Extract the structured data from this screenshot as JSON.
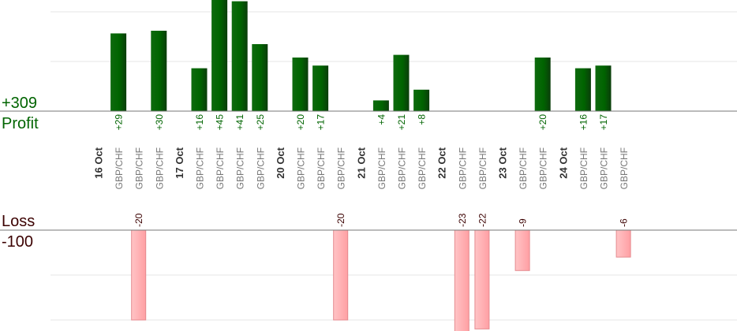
{
  "chart_data": {
    "type": "bar",
    "title": "",
    "profit_total": "+309",
    "profit_label": "Profit",
    "loss_label": "Loss",
    "loss_total": "-100",
    "columns": [
      {
        "label": "16 Oct",
        "kind": "date"
      },
      {
        "label": "GBP/CHF",
        "kind": "trade",
        "value": 29,
        "text": "+29"
      },
      {
        "label": "GBP/CHF",
        "kind": "trade",
        "value": -20,
        "text": "-20"
      },
      {
        "label": "GBP/CHF",
        "kind": "trade",
        "value": 30,
        "text": "+30"
      },
      {
        "label": "17 Oct",
        "kind": "date"
      },
      {
        "label": "GBP/CHF",
        "kind": "trade",
        "value": 16,
        "text": "+16"
      },
      {
        "label": "GBP/CHF",
        "kind": "trade",
        "value": 45,
        "text": "+45"
      },
      {
        "label": "GBP/CHF",
        "kind": "trade",
        "value": 41,
        "text": "+41"
      },
      {
        "label": "GBP/CHF",
        "kind": "trade",
        "value": 25,
        "text": "+25"
      },
      {
        "label": "20 Oct",
        "kind": "date"
      },
      {
        "label": "GBP/CHF",
        "kind": "trade",
        "value": 20,
        "text": "+20"
      },
      {
        "label": "GBP/CHF",
        "kind": "trade",
        "value": 17,
        "text": "+17"
      },
      {
        "label": "GBP/CHF",
        "kind": "trade",
        "value": -20,
        "text": "-20"
      },
      {
        "label": "21 Oct",
        "kind": "date"
      },
      {
        "label": "GBP/CHF",
        "kind": "trade",
        "value": 4,
        "text": "+4"
      },
      {
        "label": "GBP/CHF",
        "kind": "trade",
        "value": 21,
        "text": "+21"
      },
      {
        "label": "GBP/CHF",
        "kind": "trade",
        "value": 8,
        "text": "+8"
      },
      {
        "label": "22 Oct",
        "kind": "date"
      },
      {
        "label": "GBP/CHF",
        "kind": "trade",
        "value": -23,
        "text": "-23"
      },
      {
        "label": "GBP/CHF",
        "kind": "trade",
        "value": -22,
        "text": "-22"
      },
      {
        "label": "23 Oct",
        "kind": "date"
      },
      {
        "label": "GBP/CHF",
        "kind": "trade",
        "value": -9,
        "text": "-9"
      },
      {
        "label": "GBP/CHF",
        "kind": "trade",
        "value": 20,
        "text": "+20"
      },
      {
        "label": "24 Oct",
        "kind": "date"
      },
      {
        "label": "GBP/CHF",
        "kind": "trade",
        "value": 16,
        "text": "+16"
      },
      {
        "label": "GBP/CHF",
        "kind": "trade",
        "value": 17,
        "text": "+17"
      },
      {
        "label": "GBP/CHF",
        "kind": "trade",
        "value": -6,
        "text": "-6"
      }
    ],
    "colors": {
      "profit": "#006400",
      "profit_dark": "#0b3d0b",
      "profit_label": "#006400",
      "loss_fill": "#ffb6b8",
      "loss_stroke": "#e58a8f",
      "loss_label": "#3b0000",
      "date_text": "#333333",
      "pair_text": "#777777",
      "grid": "#e6e6e6",
      "axis": "#777777"
    }
  }
}
